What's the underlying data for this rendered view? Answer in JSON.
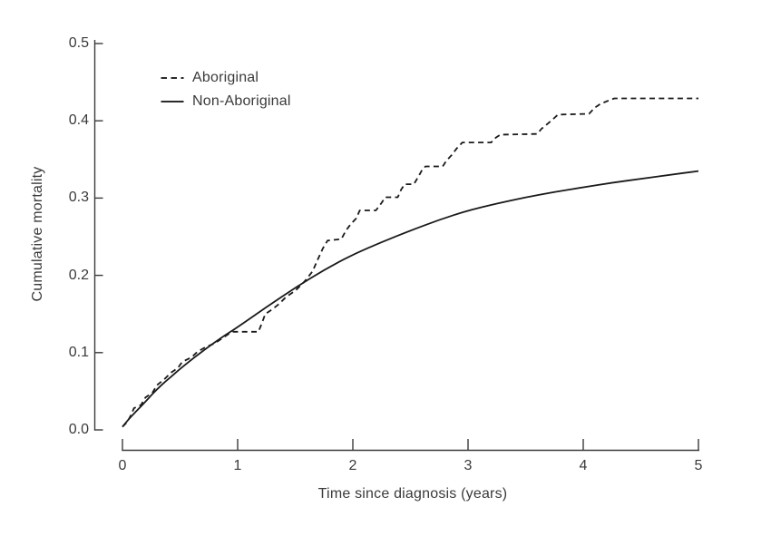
{
  "figure": {
    "background": "#ffffff",
    "text_color": "#3a3a3a",
    "curve_color": "#1a1a1a",
    "axis_color": "#3a3a3a"
  },
  "legend": {
    "items": [
      {
        "label": "Aboriginal",
        "style": "dashed"
      },
      {
        "label": "Non-Aboriginal",
        "style": "solid"
      }
    ]
  },
  "chart_data": {
    "type": "line",
    "title": "",
    "xlabel": "Time since diagnosis (years)",
    "ylabel": "Cumulative mortality",
    "xlim": [
      0,
      5
    ],
    "ylim": [
      0.0,
      0.5
    ],
    "x_ticks": [
      "0",
      "1",
      "2",
      "3",
      "4",
      "5"
    ],
    "y_ticks": [
      "0.0",
      "0.1",
      "0.2",
      "0.3",
      "0.4",
      "0.5"
    ],
    "grid": false,
    "legend_position": "inside-top-left",
    "series": [
      {
        "name": "Aboriginal",
        "style": "dashed",
        "smooth": false,
        "points": [
          [
            0,
            0.004
          ],
          [
            0.04,
            0.01
          ],
          [
            0.07,
            0.018
          ],
          [
            0.1,
            0.028
          ],
          [
            0.16,
            0.032
          ],
          [
            0.2,
            0.042
          ],
          [
            0.26,
            0.048
          ],
          [
            0.3,
            0.058
          ],
          [
            0.36,
            0.065
          ],
          [
            0.42,
            0.074
          ],
          [
            0.48,
            0.08
          ],
          [
            0.52,
            0.088
          ],
          [
            0.6,
            0.094
          ],
          [
            0.65,
            0.101
          ],
          [
            0.72,
            0.107
          ],
          [
            0.8,
            0.112
          ],
          [
            0.86,
            0.118
          ],
          [
            0.92,
            0.124
          ],
          [
            0.96,
            0.127
          ],
          [
            1.18,
            0.127
          ],
          [
            1.21,
            0.138
          ],
          [
            1.24,
            0.15
          ],
          [
            1.3,
            0.156
          ],
          [
            1.36,
            0.163
          ],
          [
            1.42,
            0.172
          ],
          [
            1.5,
            0.18
          ],
          [
            1.58,
            0.192
          ],
          [
            1.65,
            0.205
          ],
          [
            1.7,
            0.222
          ],
          [
            1.74,
            0.235
          ],
          [
            1.78,
            0.245
          ],
          [
            1.9,
            0.247
          ],
          [
            1.94,
            0.258
          ],
          [
            1.98,
            0.266
          ],
          [
            2.03,
            0.274
          ],
          [
            2.06,
            0.284
          ],
          [
            2.2,
            0.284
          ],
          [
            2.25,
            0.294
          ],
          [
            2.28,
            0.301
          ],
          [
            2.39,
            0.301
          ],
          [
            2.42,
            0.311
          ],
          [
            2.45,
            0.318
          ],
          [
            2.53,
            0.318
          ],
          [
            2.57,
            0.328
          ],
          [
            2.6,
            0.336
          ],
          [
            2.63,
            0.341
          ],
          [
            2.78,
            0.341
          ],
          [
            2.81,
            0.348
          ],
          [
            2.86,
            0.356
          ],
          [
            2.9,
            0.364
          ],
          [
            2.95,
            0.372
          ],
          [
            3.2,
            0.372
          ],
          [
            3.24,
            0.378
          ],
          [
            3.28,
            0.382
          ],
          [
            3.6,
            0.383
          ],
          [
            3.64,
            0.39
          ],
          [
            3.69,
            0.396
          ],
          [
            3.73,
            0.401
          ],
          [
            3.78,
            0.408
          ],
          [
            4.05,
            0.409
          ],
          [
            4.1,
            0.417
          ],
          [
            4.15,
            0.422
          ],
          [
            4.2,
            0.425
          ],
          [
            4.27,
            0.429
          ],
          [
            5,
            0.429
          ]
        ]
      },
      {
        "name": "Non-Aboriginal",
        "style": "solid",
        "smooth": true,
        "points": [
          [
            0,
            0.004
          ],
          [
            0.06,
            0.015
          ],
          [
            0.125,
            0.025
          ],
          [
            0.19,
            0.035
          ],
          [
            0.25,
            0.045
          ],
          [
            0.31,
            0.054
          ],
          [
            0.375,
            0.063
          ],
          [
            0.44,
            0.071
          ],
          [
            0.5,
            0.079
          ],
          [
            0.625,
            0.094
          ],
          [
            0.75,
            0.108
          ],
          [
            0.875,
            0.121
          ],
          [
            1,
            0.133
          ],
          [
            1.25,
            0.159
          ],
          [
            1.5,
            0.184
          ],
          [
            1.75,
            0.207
          ],
          [
            2,
            0.227
          ],
          [
            2.25,
            0.243
          ],
          [
            2.5,
            0.258
          ],
          [
            2.75,
            0.272
          ],
          [
            3,
            0.284
          ],
          [
            3.25,
            0.293
          ],
          [
            3.5,
            0.301
          ],
          [
            3.75,
            0.308
          ],
          [
            4,
            0.314
          ],
          [
            4.25,
            0.32
          ],
          [
            4.5,
            0.325
          ],
          [
            4.75,
            0.33
          ],
          [
            5,
            0.335
          ]
        ]
      }
    ]
  }
}
